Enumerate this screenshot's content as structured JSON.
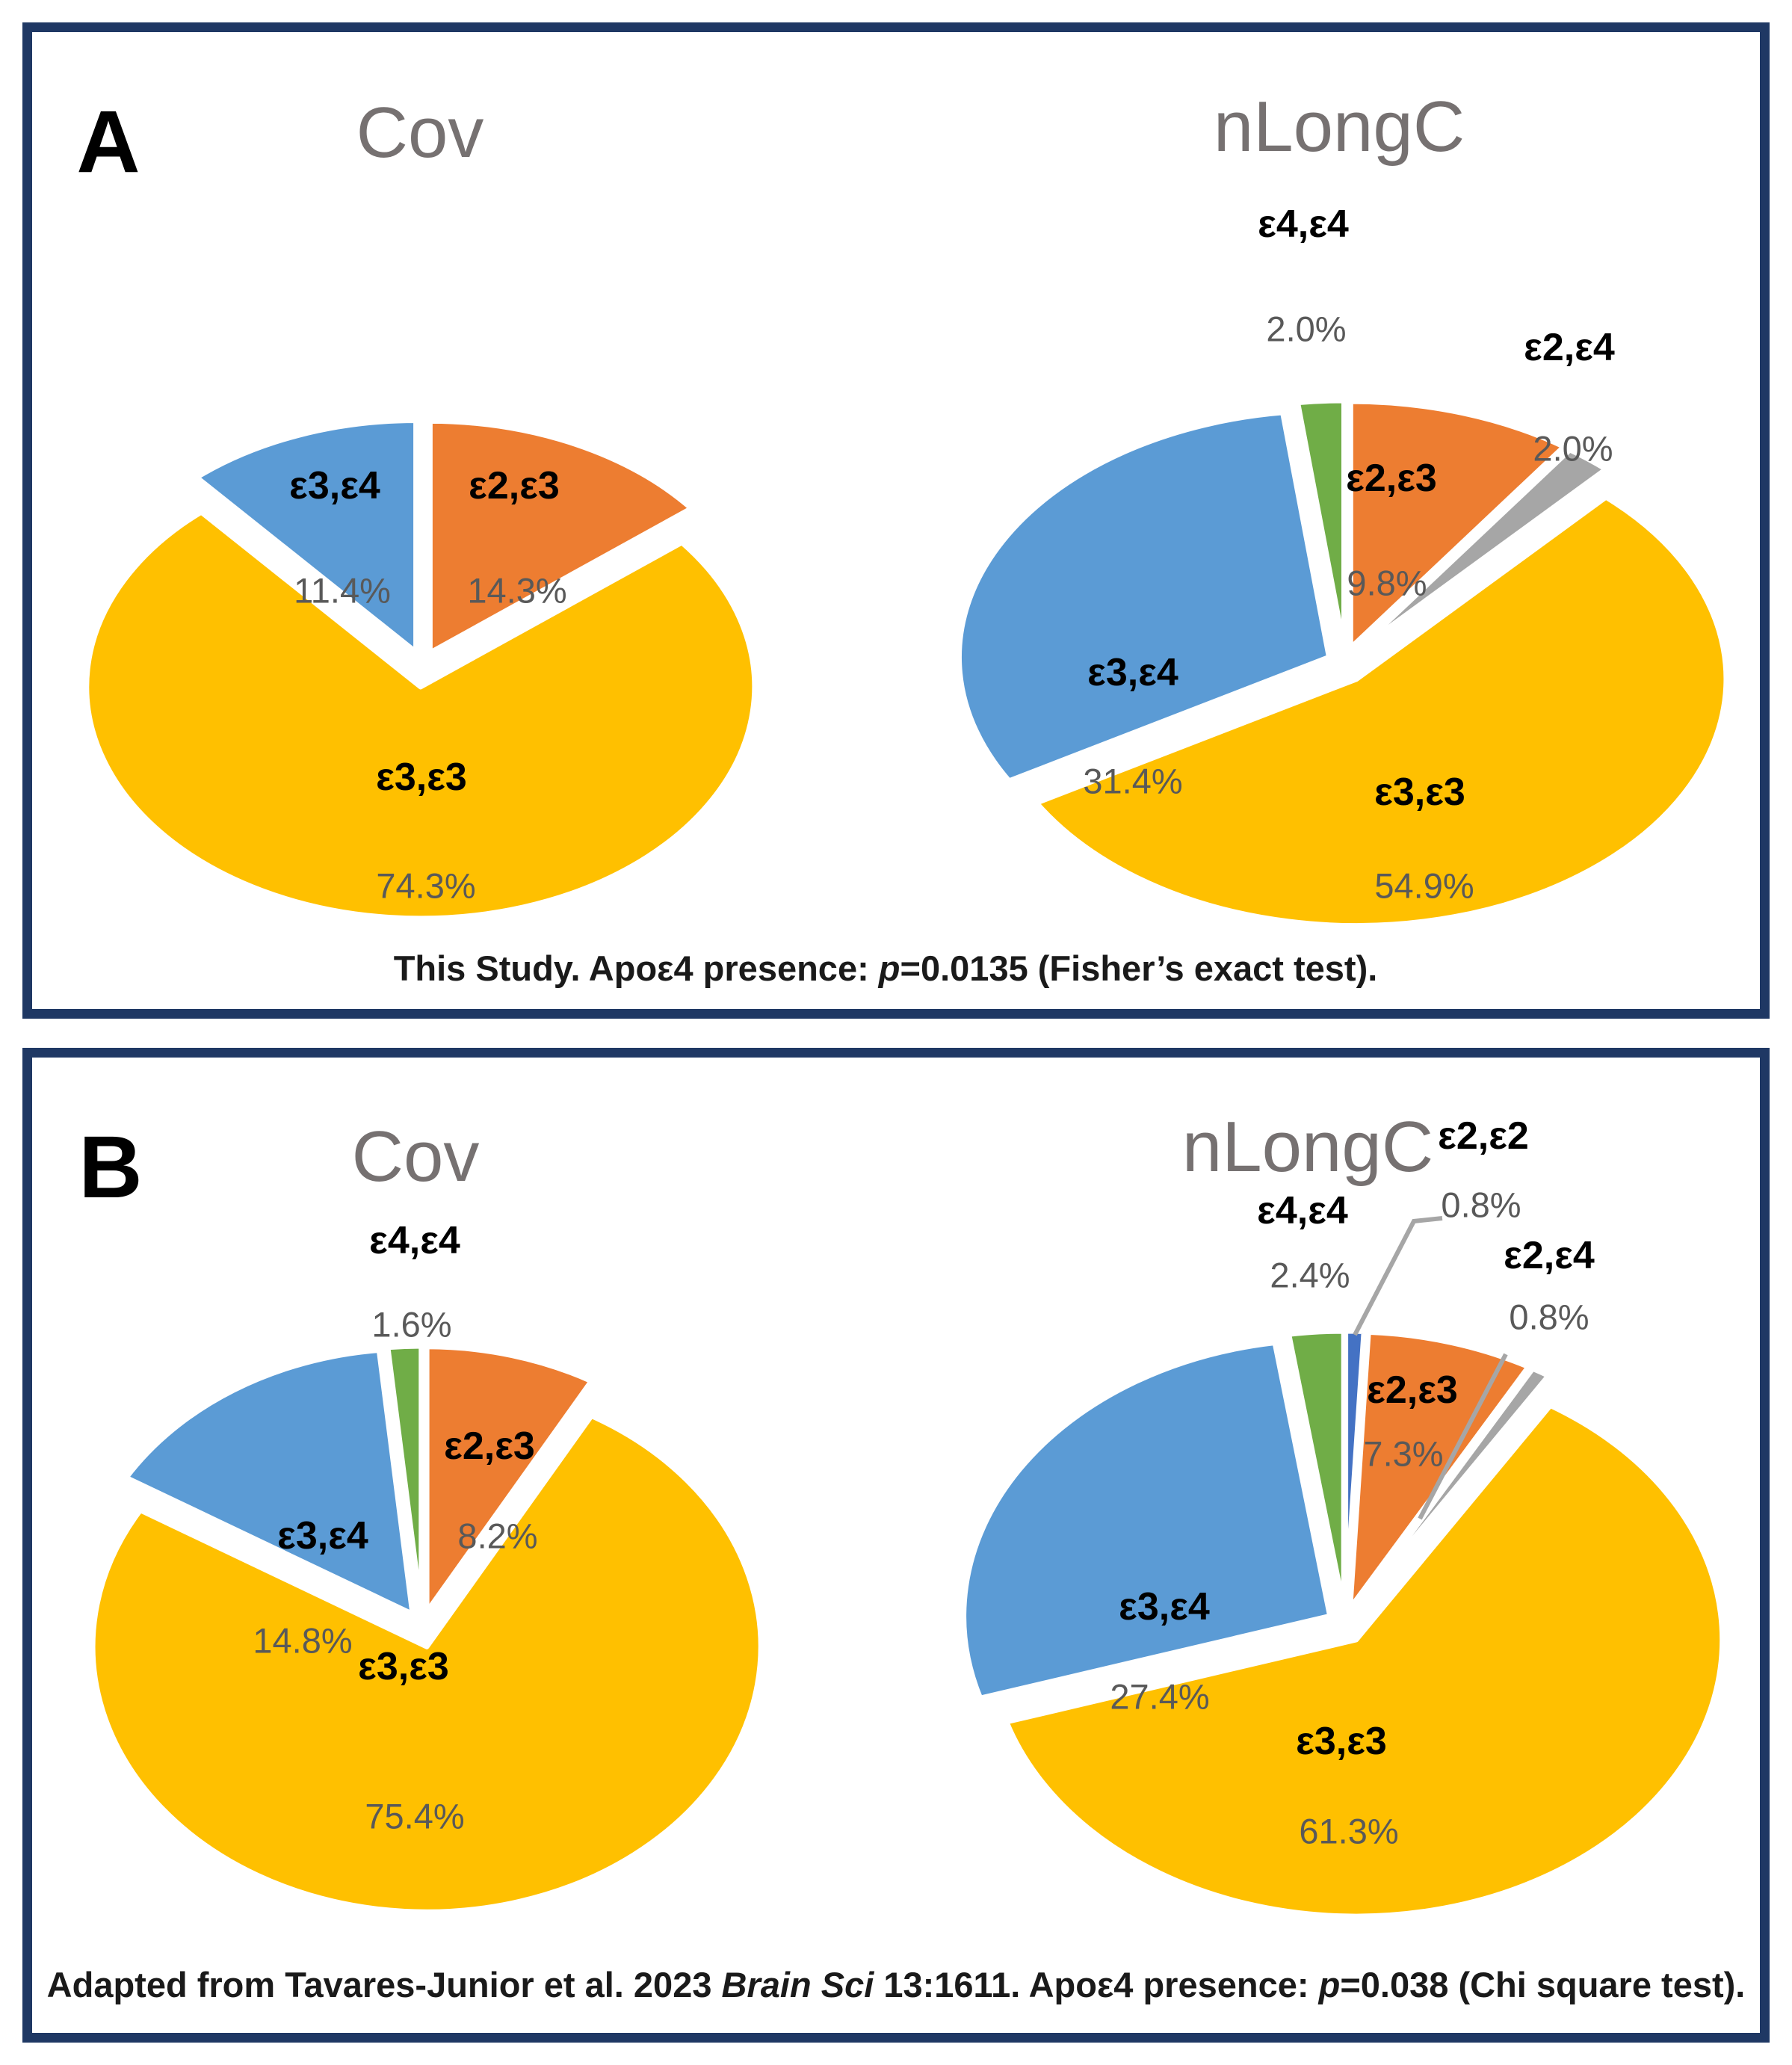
{
  "figure": {
    "border_color": "#1F3864",
    "panels": [
      {
        "letter": "A",
        "caption_parts": [
          {
            "text": "This Study. Apoε4 presence: ",
            "italic": false
          },
          {
            "text": "p",
            "italic": true
          },
          {
            "text": "=0.0135 (Fisher’s exact test).",
            "italic": false
          }
        ],
        "pies": [
          {
            "title": "Cov",
            "slices": [
              {
                "genotype": "ε2,ε3",
                "pct_label": "14.3%",
                "value": 14.3,
                "color": "#ED7D31"
              },
              {
                "genotype": "ε3,ε3",
                "pct_label": "74.3%",
                "value": 74.3,
                "color": "#FFC000"
              },
              {
                "genotype": "ε3,ε4",
                "pct_label": "11.4%",
                "value": 11.4,
                "color": "#5B9BD5"
              }
            ]
          },
          {
            "title": "nLongC",
            "slices": [
              {
                "genotype": "ε2,ε3",
                "pct_label": "9.8%",
                "value": 9.8,
                "color": "#ED7D31"
              },
              {
                "genotype": "ε2,ε4",
                "pct_label": "2.0%",
                "value": 2.0,
                "color": "#A6A6A6"
              },
              {
                "genotype": "ε3,ε3",
                "pct_label": "54.9%",
                "value": 54.9,
                "color": "#FFC000"
              },
              {
                "genotype": "ε3,ε4",
                "pct_label": "31.4%",
                "value": 31.4,
                "color": "#5B9BD5"
              },
              {
                "genotype": "ε4,ε4",
                "pct_label": "2.0%",
                "value": 2.0,
                "color": "#70AD47"
              }
            ]
          }
        ]
      },
      {
        "letter": "B",
        "caption_parts": [
          {
            "text": "Adapted from Tavares-Junior et al. 2023 ",
            "italic": false
          },
          {
            "text": "Brain Sci",
            "italic": true
          },
          {
            "text": " 13:1611. Apoε4 presence: ",
            "italic": false
          },
          {
            "text": "p",
            "italic": true
          },
          {
            "text": "=0.038 (Chi square test).",
            "italic": false
          }
        ],
        "pies": [
          {
            "title": "Cov",
            "slices": [
              {
                "genotype": "ε2,ε3",
                "pct_label": "8.2%",
                "value": 8.2,
                "color": "#ED7D31"
              },
              {
                "genotype": "ε3,ε3",
                "pct_label": "75.4%",
                "value": 75.4,
                "color": "#FFC000"
              },
              {
                "genotype": "ε3,ε4",
                "pct_label": "14.8%",
                "value": 14.8,
                "color": "#5B9BD5"
              },
              {
                "genotype": "ε4,ε4",
                "pct_label": "1.6%",
                "value": 1.6,
                "color": "#70AD47"
              }
            ]
          },
          {
            "title": "nLongC",
            "slices": [
              {
                "genotype": "ε2,ε2",
                "pct_label": "0.8%",
                "value": 0.8,
                "color": "#4472C4"
              },
              {
                "genotype": "ε2,ε3",
                "pct_label": "7.3%",
                "value": 7.3,
                "color": "#ED7D31"
              },
              {
                "genotype": "ε2,ε4",
                "pct_label": "0.8%",
                "value": 0.8,
                "color": "#A6A6A6"
              },
              {
                "genotype": "ε3,ε3",
                "pct_label": "61.3%",
                "value": 61.3,
                "color": "#FFC000"
              },
              {
                "genotype": "ε3,ε4",
                "pct_label": "27.4%",
                "value": 27.4,
                "color": "#5B9BD5"
              },
              {
                "genotype": "ε4,ε4",
                "pct_label": "2.4%",
                "value": 2.4,
                "color": "#70AD47"
              }
            ]
          }
        ]
      }
    ]
  },
  "chart_data": [
    {
      "type": "pie",
      "panel": "A",
      "title": "Cov",
      "labels": [
        "ε2,ε3",
        "ε3,ε3",
        "ε3,ε4"
      ],
      "values": [
        14.3,
        74.3,
        11.4
      ],
      "colors": [
        "#ED7D31",
        "#FFC000",
        "#5B9BD5"
      ],
      "annotation": "This Study. Apoε4 presence: p=0.0135 (Fisher’s exact test).",
      "layout": "exploded pie, clockwise from 12 o’clock, no legend, data labels on slices"
    },
    {
      "type": "pie",
      "panel": "A",
      "title": "nLongC",
      "labels": [
        "ε2,ε3",
        "ε2,ε4",
        "ε3,ε3",
        "ε3,ε4",
        "ε4,ε4"
      ],
      "values": [
        9.8,
        2.0,
        54.9,
        31.4,
        2.0
      ],
      "colors": [
        "#ED7D31",
        "#A6A6A6",
        "#FFC000",
        "#5B9BD5",
        "#70AD47"
      ],
      "annotation": "This Study. Apoε4 presence: p=0.0135 (Fisher’s exact test).",
      "layout": "exploded pie, clockwise from 12 o’clock, small slices labeled outside"
    },
    {
      "type": "pie",
      "panel": "B",
      "title": "Cov",
      "labels": [
        "ε2,ε3",
        "ε3,ε3",
        "ε3,ε4",
        "ε4,ε4"
      ],
      "values": [
        8.2,
        75.4,
        14.8,
        1.6
      ],
      "colors": [
        "#ED7D31",
        "#FFC000",
        "#5B9BD5",
        "#70AD47"
      ],
      "annotation": "Adapted from Tavares-Junior et al. 2023 Brain Sci 13:1611. Apoε4 presence: p=0.038 (Chi square test).",
      "layout": "exploded pie, clockwise from 12 o’clock"
    },
    {
      "type": "pie",
      "panel": "B",
      "title": "nLongC",
      "labels": [
        "ε2,ε2",
        "ε2,ε3",
        "ε2,ε4",
        "ε3,ε3",
        "ε3,ε4",
        "ε4,ε4"
      ],
      "values": [
        0.8,
        7.3,
        0.8,
        61.3,
        27.4,
        2.4
      ],
      "colors": [
        "#4472C4",
        "#ED7D31",
        "#A6A6A6",
        "#FFC000",
        "#5B9BD5",
        "#70AD47"
      ],
      "annotation": "Adapted from Tavares-Junior et al. 2023 Brain Sci 13:1611. Apoε4 presence: p=0.038 (Chi square test).",
      "layout": "exploded pie, clockwise from 12 o’clock, 0.8% slices labeled outside with gray leader lines"
    }
  ]
}
